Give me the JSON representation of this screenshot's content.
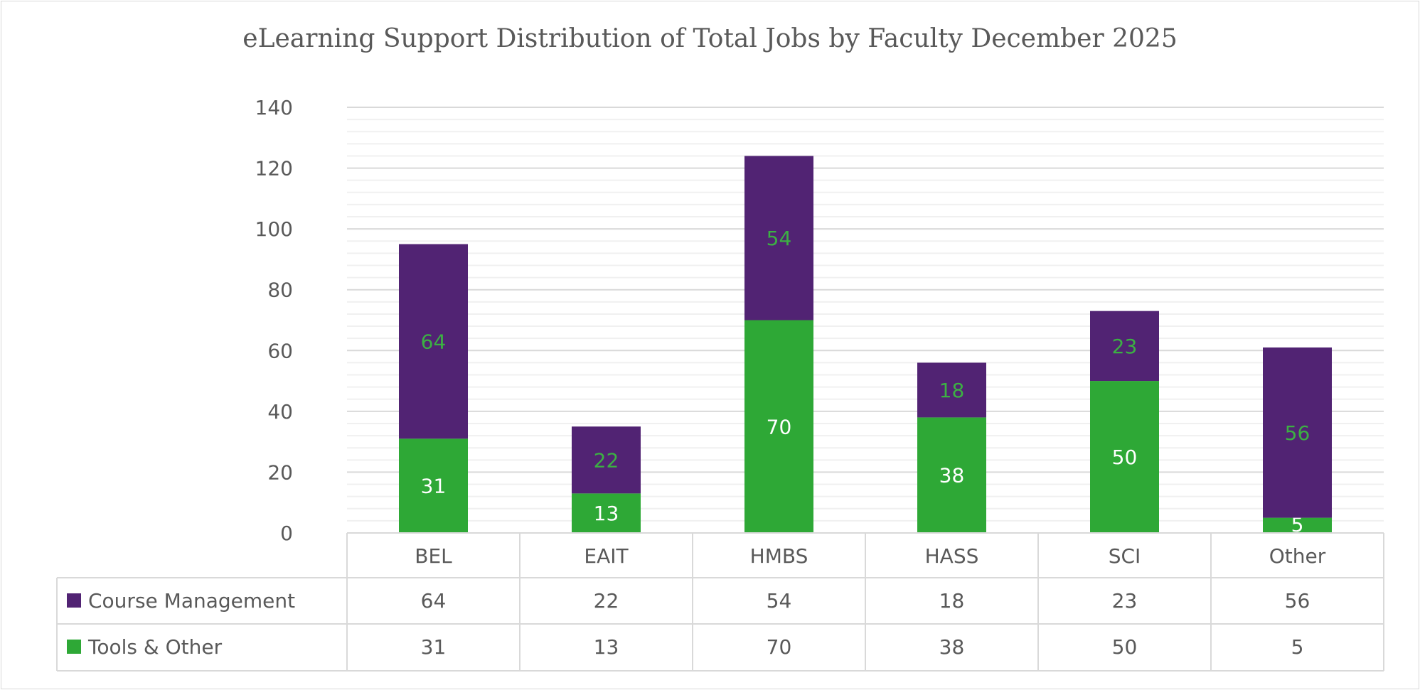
{
  "chart_data": {
    "type": "bar",
    "stacked": true,
    "title": "eLearning Support Distribution of Total Jobs by Faculty December 2025",
    "categories": [
      "BEL",
      "EAIT",
      "HMBS",
      "HASS",
      "SCI",
      "Other"
    ],
    "series": [
      {
        "name": "Tools & Other",
        "values": [
          31,
          13,
          70,
          38,
          50,
          5
        ],
        "color": "#2ea836",
        "label_color": "#ffffff"
      },
      {
        "name": "Course Management",
        "values": [
          64,
          22,
          54,
          18,
          23,
          56
        ],
        "color": "#512373",
        "label_color": "#3cb043"
      }
    ],
    "table_order": [
      "Course Management",
      "Tools & Other"
    ],
    "ylim": [
      0,
      140
    ],
    "yticks": [
      0,
      20,
      40,
      60,
      80,
      100,
      120,
      140
    ],
    "minor_grid_step": 4,
    "grid": true,
    "legend": "data-table",
    "xlabel": "",
    "ylabel": ""
  }
}
